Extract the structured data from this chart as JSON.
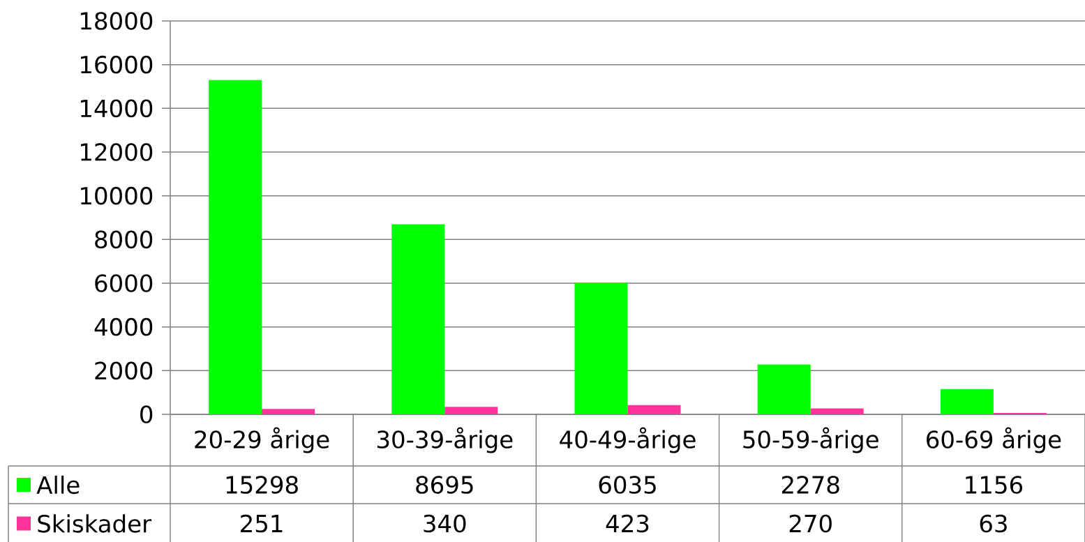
{
  "chart_data": {
    "type": "bar",
    "categories": [
      "20-29 årige",
      "30-39-årige",
      "40-49-årige",
      "50-59-årige",
      "60-69 årige"
    ],
    "series": [
      {
        "name": "Alle",
        "color": "#00ff00",
        "values": [
          15298,
          8695,
          6035,
          2278,
          1156
        ]
      },
      {
        "name": "Skiskader",
        "color": "#ff3399",
        "values": [
          251,
          340,
          423,
          270,
          63
        ]
      }
    ],
    "ylim": [
      0,
      18000
    ],
    "yticks": [
      0,
      2000,
      4000,
      6000,
      8000,
      10000,
      12000,
      14000,
      16000,
      18000
    ],
    "grid": "y",
    "legend": "bottom left",
    "data_labels": true
  }
}
